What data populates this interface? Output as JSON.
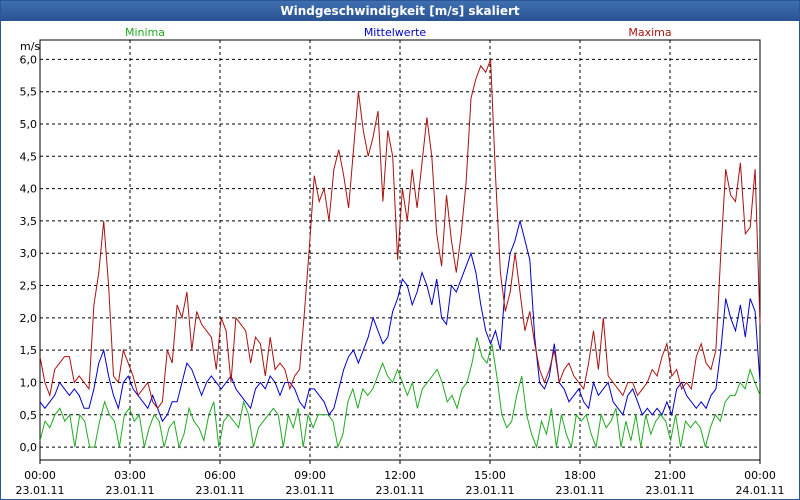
{
  "window": {
    "title": "Windgeschwindigkeit [m/s] skaliert"
  },
  "chart_data": {
    "type": "line",
    "title": "Windgeschwindigkeit [m/s] skaliert",
    "ylabel": "m/s",
    "ylim": [
      -0.2,
      6.3
    ],
    "yticks": [
      "0,0",
      "0,5",
      "1,0",
      "1,5",
      "2,0",
      "2,5",
      "3,0",
      "3,5",
      "4,0",
      "4,5",
      "5,0",
      "5,5",
      "6,0"
    ],
    "xlim": [
      0,
      24
    ],
    "xticks": [
      {
        "time": "00:00",
        "date": "23.01.11"
      },
      {
        "time": "03:00",
        "date": "23.01.11"
      },
      {
        "time": "06:00",
        "date": "23.01.11"
      },
      {
        "time": "09:00",
        "date": "23.01.11"
      },
      {
        "time": "12:00",
        "date": "23.01.11"
      },
      {
        "time": "15:00",
        "date": "23.01.11"
      },
      {
        "time": "18:00",
        "date": "23.01.11"
      },
      {
        "time": "21:00",
        "date": "23.01.11"
      },
      {
        "time": "00:00",
        "date": "24.01.11"
      }
    ],
    "grid": true,
    "series": [
      {
        "name": "Minima",
        "color": "#22aa22",
        "values": [
          0.1,
          0.4,
          0.3,
          0.5,
          0.6,
          0.4,
          0.5,
          0.0,
          0.5,
          0.4,
          0.0,
          0.0,
          0.4,
          0.7,
          0.5,
          0.4,
          0.0,
          0.5,
          0.6,
          0.4,
          0.5,
          0.0,
          0.3,
          0.5,
          0.4,
          0.0,
          0.3,
          0.4,
          0.0,
          0.2,
          0.6,
          0.4,
          0.3,
          0.1,
          0.5,
          0.7,
          0.0,
          0.4,
          0.5,
          0.4,
          0.3,
          0.7,
          0.5,
          0.0,
          0.3,
          0.4,
          0.5,
          0.6,
          0.5,
          0.0,
          0.5,
          0.3,
          0.6,
          0.0,
          0.5,
          0.3,
          0.5,
          0.5,
          0.5,
          0.4,
          0.0,
          0.2,
          0.7,
          0.9,
          0.6,
          0.9,
          0.8,
          0.9,
          1.1,
          1.3,
          1.1,
          1.0,
          1.2,
          1.0,
          0.8,
          1.0,
          0.6,
          0.9,
          1.0,
          1.1,
          1.2,
          1.0,
          0.7,
          0.8,
          0.6,
          0.9,
          1.0,
          1.3,
          1.7,
          1.4,
          1.3,
          1.6,
          1.1,
          0.5,
          0.3,
          0.4,
          0.8,
          1.1,
          0.5,
          0.2,
          0.0,
          0.4,
          0.2,
          0.6,
          0.0,
          0.5,
          0.2,
          0.0,
          0.5,
          0.4,
          0.5,
          0.2,
          0.0,
          0.5,
          0.3,
          0.4,
          0.6,
          0.0,
          0.4,
          0.1,
          0.5,
          0.0,
          0.5,
          0.2,
          0.4,
          0.5,
          0.4,
          0.1,
          0.5,
          0.0,
          0.4,
          0.3,
          0.4,
          0.3,
          0.0,
          0.3,
          0.5,
          0.4,
          0.7,
          0.8,
          0.8,
          1.0,
          0.9,
          1.2,
          1.0,
          0.8
        ]
      },
      {
        "name": "Mittelwerte",
        "color": "#0000cc",
        "values": [
          0.7,
          0.6,
          0.7,
          0.8,
          1.0,
          0.9,
          0.8,
          0.9,
          0.8,
          0.6,
          0.6,
          0.9,
          1.3,
          1.5,
          1.1,
          0.8,
          0.6,
          1.0,
          1.1,
          0.9,
          0.8,
          0.7,
          0.6,
          0.8,
          0.6,
          0.4,
          0.5,
          0.7,
          0.7,
          1.0,
          1.3,
          1.2,
          1.0,
          0.8,
          1.0,
          1.1,
          1.0,
          0.9,
          1.0,
          1.1,
          0.9,
          0.8,
          0.7,
          0.6,
          0.9,
          1.0,
          0.9,
          1.1,
          1.0,
          0.8,
          1.0,
          1.0,
          0.9,
          0.7,
          0.6,
          0.9,
          0.9,
          0.8,
          0.7,
          0.5,
          0.6,
          0.9,
          1.2,
          1.4,
          1.5,
          1.3,
          1.5,
          1.7,
          2.0,
          1.8,
          1.6,
          1.7,
          2.1,
          2.3,
          2.6,
          2.5,
          2.2,
          2.4,
          2.7,
          2.5,
          2.2,
          2.6,
          2.0,
          1.9,
          2.5,
          2.4,
          2.6,
          2.8,
          3.0,
          2.7,
          2.2,
          1.8,
          1.6,
          1.8,
          1.5,
          2.5,
          3.0,
          3.2,
          3.5,
          3.2,
          2.9,
          1.7,
          1.0,
          0.9,
          1.1,
          1.6,
          1.0,
          0.9,
          0.7,
          0.8,
          0.9,
          0.7,
          0.6,
          1.0,
          0.8,
          0.9,
          1.0,
          0.7,
          0.6,
          0.5,
          0.8,
          0.9,
          0.7,
          0.5,
          0.6,
          0.5,
          0.6,
          0.5,
          0.7,
          0.5,
          0.9,
          1.0,
          0.8,
          0.7,
          0.6,
          0.7,
          0.6,
          0.8,
          0.9,
          1.5,
          2.3,
          2.0,
          1.8,
          2.2,
          1.7,
          2.3,
          2.1,
          1.0
        ]
      },
      {
        "name": "Maxima",
        "color": "#aa1111",
        "values": [
          1.4,
          1.0,
          0.8,
          1.2,
          1.3,
          1.4,
          1.4,
          1.0,
          1.1,
          1.0,
          0.9,
          2.2,
          2.7,
          3.5,
          2.5,
          1.1,
          1.0,
          1.5,
          1.3,
          1.1,
          0.8,
          0.9,
          1.0,
          0.7,
          0.6,
          0.7,
          1.5,
          1.3,
          2.2,
          2.0,
          2.4,
          1.5,
          2.1,
          1.9,
          1.8,
          1.7,
          1.2,
          2.0,
          1.8,
          1.0,
          2.0,
          1.9,
          1.8,
          1.3,
          1.7,
          1.6,
          1.1,
          1.7,
          1.2,
          1.3,
          1.2,
          0.9,
          1.1,
          1.2,
          2.1,
          3.1,
          4.2,
          3.8,
          4.0,
          3.5,
          4.3,
          4.6,
          4.2,
          3.7,
          4.6,
          5.5,
          4.9,
          4.5,
          4.8,
          5.2,
          3.8,
          4.9,
          4.5,
          2.9,
          4.0,
          3.5,
          4.3,
          3.7,
          4.4,
          5.1,
          4.5,
          3.3,
          2.8,
          3.9,
          3.2,
          2.7,
          3.3,
          4.1,
          5.4,
          5.7,
          5.9,
          5.8,
          6.0,
          4.2,
          2.7,
          2.1,
          2.4,
          3.0,
          2.4,
          1.8,
          2.1,
          1.6,
          1.2,
          1.0,
          1.2,
          1.5,
          1.0,
          1.2,
          1.3,
          1.1,
          1.0,
          0.9,
          1.3,
          1.8,
          1.2,
          2.0,
          1.1,
          1.0,
          0.9,
          0.8,
          1.0,
          1.0,
          0.8,
          0.9,
          1.0,
          1.2,
          1.1,
          1.4,
          1.6,
          1.1,
          1.2,
          0.9,
          1.0,
          0.9,
          1.4,
          1.6,
          1.3,
          1.2,
          1.5,
          3.0,
          4.3,
          3.9,
          3.8,
          4.4,
          3.3,
          3.4,
          4.3,
          1.9
        ]
      }
    ]
  }
}
